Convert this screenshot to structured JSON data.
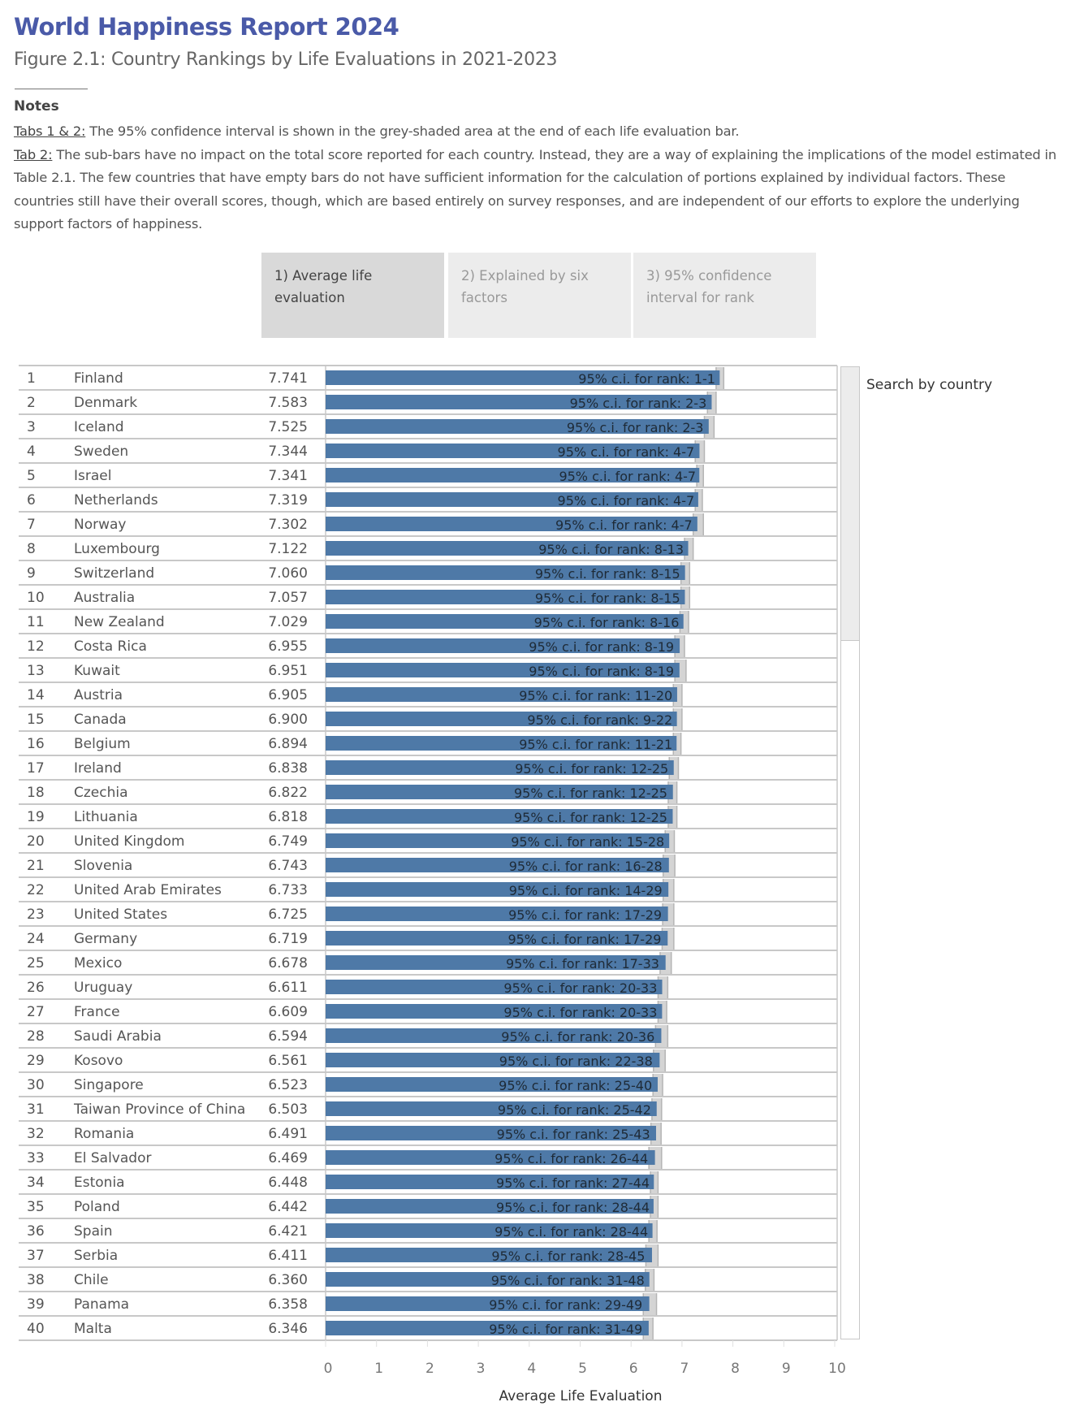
{
  "header": {
    "title": "World Happiness Report 2024",
    "subtitle": "Figure 2.1: Country Rankings by Life Evaluations in 2021-2023"
  },
  "notes": {
    "heading": "Notes",
    "tab12_label": "Tabs 1 & 2:",
    "tab12_text": " The 95% confidence interval is shown in the grey-shaded area at the end of each life evaluation bar.",
    "tab2_label": "Tab 2:",
    "tab2_text": " The sub-bars have no impact on the total score reported for each country. Instead, they are a way of explaining the implications of the model estimated in Table 2.1. The few countries that have empty bars do not have sufficient information for the calculation of portions explained by individual factors. These countries still have their overall scores, though, which are based entirely on survey responses, and are independent of our efforts to explore the underlying support factors of happiness."
  },
  "tabs": [
    {
      "label": "1) Average life evaluation",
      "active": true
    },
    {
      "label": "2) Explained by six factors",
      "active": false
    },
    {
      "label": "3) 95% confidence interval for rank",
      "active": false
    }
  ],
  "search": {
    "label": "Search by country"
  },
  "colors": {
    "bar": "#4e79a7",
    "ci": "#d4d4d4",
    "ci_edge": "#b5b5b5",
    "title": "#4a5aa8",
    "tab_active": "#d9d9d9",
    "tab_inactive": "#ececec"
  },
  "chart_data": {
    "type": "bar",
    "orientation": "horizontal",
    "xlabel": "Average Life Evaluation",
    "xlim": [
      0,
      10
    ],
    "xticks": [
      "0",
      "1",
      "2",
      "3",
      "4",
      "5",
      "6",
      "7",
      "8",
      "9",
      "10"
    ],
    "bar_label_prefix": "95% c.i. for rank: ",
    "rows": [
      {
        "rank": "1",
        "country": "Finland",
        "score": "7.741",
        "ci": [
          7.67,
          7.82
        ],
        "rank_ci": "1-1"
      },
      {
        "rank": "2",
        "country": "Denmark",
        "score": "7.583",
        "ci": [
          7.5,
          7.67
        ],
        "rank_ci": "2-3"
      },
      {
        "rank": "3",
        "country": "Iceland",
        "score": "7.525",
        "ci": [
          7.44,
          7.63
        ],
        "rank_ci": "2-3"
      },
      {
        "rank": "4",
        "country": "Sweden",
        "score": "7.344",
        "ci": [
          7.26,
          7.44
        ],
        "rank_ci": "4-7"
      },
      {
        "rank": "5",
        "country": "Israel",
        "score": "7.341",
        "ci": [
          7.29,
          7.42
        ],
        "rank_ci": "4-7"
      },
      {
        "rank": "6",
        "country": "Netherlands",
        "score": "7.319",
        "ci": [
          7.26,
          7.4
        ],
        "rank_ci": "4-7"
      },
      {
        "rank": "7",
        "country": "Norway",
        "score": "7.302",
        "ci": [
          7.22,
          7.42
        ],
        "rank_ci": "4-7"
      },
      {
        "rank": "8",
        "country": "Luxembourg",
        "score": "7.122",
        "ci": [
          7.05,
          7.22
        ],
        "rank_ci": "8-13"
      },
      {
        "rank": "9",
        "country": "Switzerland",
        "score": "7.060",
        "ci": [
          6.98,
          7.15
        ],
        "rank_ci": "8-15"
      },
      {
        "rank": "10",
        "country": "Australia",
        "score": "7.057",
        "ci": [
          6.98,
          7.15
        ],
        "rank_ci": "8-15"
      },
      {
        "rank": "11",
        "country": "New Zealand",
        "score": "7.029",
        "ci": [
          6.96,
          7.13
        ],
        "rank_ci": "8-16"
      },
      {
        "rank": "12",
        "country": "Costa Rica",
        "score": "6.955",
        "ci": [
          6.86,
          7.05
        ],
        "rank_ci": "8-19"
      },
      {
        "rank": "13",
        "country": "Kuwait",
        "score": "6.951",
        "ci": [
          6.86,
          7.08
        ],
        "rank_ci": "8-19"
      },
      {
        "rank": "14",
        "country": "Austria",
        "score": "6.905",
        "ci": [
          6.83,
          7.0
        ],
        "rank_ci": "11-20"
      },
      {
        "rank": "15",
        "country": "Canada",
        "score": "6.900",
        "ci": [
          6.83,
          7.0
        ],
        "rank_ci": "9-22"
      },
      {
        "rank": "16",
        "country": "Belgium",
        "score": "6.894",
        "ci": [
          6.83,
          6.98
        ],
        "rank_ci": "11-21"
      },
      {
        "rank": "17",
        "country": "Ireland",
        "score": "6.838",
        "ci": [
          6.75,
          6.93
        ],
        "rank_ci": "12-25"
      },
      {
        "rank": "18",
        "country": "Czechia",
        "score": "6.822",
        "ci": [
          6.73,
          6.9
        ],
        "rank_ci": "12-25"
      },
      {
        "rank": "19",
        "country": "Lithuania",
        "score": "6.818",
        "ci": [
          6.73,
          6.9
        ],
        "rank_ci": "12-25"
      },
      {
        "rank": "20",
        "country": "United Kingdom",
        "score": "6.749",
        "ci": [
          6.67,
          6.85
        ],
        "rank_ci": "15-28"
      },
      {
        "rank": "21",
        "country": "Slovenia",
        "score": "6.743",
        "ci": [
          6.63,
          6.86
        ],
        "rank_ci": "16-28"
      },
      {
        "rank": "22",
        "country": "United Arab Emirates",
        "score": "6.733",
        "ci": [
          6.63,
          6.84
        ],
        "rank_ci": "14-29"
      },
      {
        "rank": "23",
        "country": "United States",
        "score": "6.725",
        "ci": [
          6.62,
          6.84
        ],
        "rank_ci": "17-29"
      },
      {
        "rank": "24",
        "country": "Germany",
        "score": "6.719",
        "ci": [
          6.61,
          6.84
        ],
        "rank_ci": "17-29"
      },
      {
        "rank": "25",
        "country": "Mexico",
        "score": "6.678",
        "ci": [
          6.57,
          6.79
        ],
        "rank_ci": "17-33"
      },
      {
        "rank": "26",
        "country": "Uruguay",
        "score": "6.611",
        "ci": [
          6.53,
          6.72
        ],
        "rank_ci": "20-33"
      },
      {
        "rank": "27",
        "country": "France",
        "score": "6.609",
        "ci": [
          6.53,
          6.7
        ],
        "rank_ci": "20-33"
      },
      {
        "rank": "28",
        "country": "Saudi Arabia",
        "score": "6.594",
        "ci": [
          6.48,
          6.72
        ],
        "rank_ci": "20-36"
      },
      {
        "rank": "29",
        "country": "Kosovo",
        "score": "6.561",
        "ci": [
          6.44,
          6.67
        ],
        "rank_ci": "22-38"
      },
      {
        "rank": "30",
        "country": "Singapore",
        "score": "6.523",
        "ci": [
          6.43,
          6.62
        ],
        "rank_ci": "25-40"
      },
      {
        "rank": "31",
        "country": "Taiwan Province of China",
        "score": "6.503",
        "ci": [
          6.41,
          6.6
        ],
        "rank_ci": "25-42"
      },
      {
        "rank": "32",
        "country": "Romania",
        "score": "6.491",
        "ci": [
          6.39,
          6.59
        ],
        "rank_ci": "25-43"
      },
      {
        "rank": "33",
        "country": "El Salvador",
        "score": "6.469",
        "ci": [
          6.35,
          6.6
        ],
        "rank_ci": "26-44"
      },
      {
        "rank": "34",
        "country": "Estonia",
        "score": "6.448",
        "ci": [
          6.38,
          6.53
        ],
        "rank_ci": "27-44"
      },
      {
        "rank": "35",
        "country": "Poland",
        "score": "6.442",
        "ci": [
          6.38,
          6.53
        ],
        "rank_ci": "28-44"
      },
      {
        "rank": "36",
        "country": "Spain",
        "score": "6.421",
        "ci": [
          6.35,
          6.51
        ],
        "rank_ci": "28-44"
      },
      {
        "rank": "37",
        "country": "Serbia",
        "score": "6.411",
        "ci": [
          6.29,
          6.53
        ],
        "rank_ci": "28-45"
      },
      {
        "rank": "38",
        "country": "Chile",
        "score": "6.360",
        "ci": [
          6.28,
          6.45
        ],
        "rank_ci": "31-48"
      },
      {
        "rank": "39",
        "country": "Panama",
        "score": "6.358",
        "ci": [
          6.24,
          6.5
        ],
        "rank_ci": "29-49"
      },
      {
        "rank": "40",
        "country": "Malta",
        "score": "6.346",
        "ci": [
          6.24,
          6.43
        ],
        "rank_ci": "31-49"
      }
    ]
  }
}
